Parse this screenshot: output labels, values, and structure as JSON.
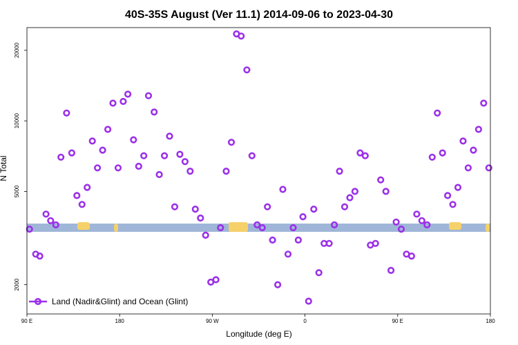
{
  "chart_data": {
    "type": "scatter",
    "title": "40S-35S August (Ver 11.1)   2014-09-06 to 2023-04-30",
    "xlabel": "Longitude (deg E)",
    "ylabel": "N Total",
    "x_range_deg": [
      90,
      450
    ],
    "y_scale": "log",
    "ylim": [
      1500,
      25000
    ],
    "x_ticks": [
      {
        "value": 90,
        "label": "90 E"
      },
      {
        "value": 180,
        "label": "180"
      },
      {
        "value": 270,
        "label": "90 W"
      },
      {
        "value": 360,
        "label": "0"
      },
      {
        "value": 450,
        "label": "90 E"
      },
      {
        "value": 540,
        "label": "180"
      }
    ],
    "y_ticks": [
      {
        "value": 2000,
        "label": "2000"
      },
      {
        "value": 5000,
        "label": "5000"
      },
      {
        "value": 10000,
        "label": "10000"
      },
      {
        "value": 20000,
        "label": "20000"
      }
    ],
    "grid": false,
    "legend": {
      "position": "bottom-left",
      "entries": [
        "Land (Nadir&Glint) and Ocean (Glint)"
      ]
    },
    "series": [
      {
        "name": "Land (Nadir&Glint) and Ocean (Glint)",
        "color": "#9b30e8",
        "marker": "ring",
        "points": [
          [
            92.5,
            3450
          ],
          [
            98.5,
            2700
          ],
          [
            102.5,
            2650
          ],
          [
            108.5,
            4000
          ],
          [
            113,
            3750
          ],
          [
            118,
            3600
          ],
          [
            123,
            7000
          ],
          [
            128.5,
            10800
          ],
          [
            133.5,
            7300
          ],
          [
            138.5,
            4800
          ],
          [
            143.5,
            4400
          ],
          [
            148.5,
            5200
          ],
          [
            153.5,
            8200
          ],
          [
            158.5,
            6300
          ],
          [
            163.5,
            7500
          ],
          [
            168.5,
            9200
          ],
          [
            173.5,
            11900
          ],
          [
            178.5,
            6300
          ],
          [
            183.5,
            12100
          ],
          [
            188,
            13000
          ],
          [
            193.5,
            8300
          ],
          [
            198.5,
            6400
          ],
          [
            203.5,
            7100
          ],
          [
            208,
            12800
          ],
          [
            213.5,
            10900
          ],
          [
            218.5,
            5900
          ],
          [
            223.5,
            7100
          ],
          [
            228.5,
            8600
          ],
          [
            233.5,
            4300
          ],
          [
            238.5,
            7200
          ],
          [
            243.5,
            6700
          ],
          [
            248.5,
            6100
          ],
          [
            253.5,
            4200
          ],
          [
            258.5,
            3850
          ],
          [
            263.5,
            3250
          ],
          [
            268.5,
            2050
          ],
          [
            273.5,
            2100
          ],
          [
            278,
            3500
          ],
          [
            283.5,
            6100
          ],
          [
            288.5,
            8100
          ],
          [
            293.5,
            23500
          ],
          [
            298,
            23000
          ],
          [
            303.5,
            16500
          ],
          [
            308.5,
            7100
          ],
          [
            313.5,
            3600
          ],
          [
            318.5,
            3500
          ],
          [
            323.5,
            4300
          ],
          [
            328.5,
            3100
          ],
          [
            333.5,
            2000
          ],
          [
            338.5,
            5100
          ],
          [
            343.5,
            2700
          ],
          [
            348.5,
            3500
          ],
          [
            353.5,
            3100
          ],
          [
            358,
            3900
          ],
          [
            363.5,
            1700
          ],
          [
            368.5,
            4200
          ],
          [
            373.5,
            2250
          ],
          [
            378.5,
            3000
          ],
          [
            383.5,
            3000
          ],
          [
            388.5,
            3600
          ],
          [
            393.5,
            6100
          ],
          [
            398.5,
            4300
          ],
          [
            403.5,
            4700
          ],
          [
            408.5,
            5000
          ],
          [
            413.5,
            7300
          ],
          [
            418.5,
            7100
          ],
          [
            423.5,
            2950
          ],
          [
            428.5,
            3000
          ],
          [
            433.5,
            5600
          ],
          [
            438.5,
            5000
          ],
          [
            443.5,
            2300
          ],
          [
            448.5,
            3700
          ],
          [
            453.5,
            3450
          ],
          [
            458.5,
            2700
          ],
          [
            463.5,
            2650
          ],
          [
            468.5,
            4000
          ],
          [
            473.5,
            3750
          ],
          [
            478.5,
            3600
          ],
          [
            483.5,
            7000
          ],
          [
            488.5,
            10800
          ],
          [
            493.5,
            7300
          ],
          [
            498.5,
            4800
          ],
          [
            503.5,
            4400
          ],
          [
            508.5,
            5200
          ],
          [
            513.5,
            8200
          ],
          [
            518.5,
            6300
          ],
          [
            523.5,
            7500
          ],
          [
            528.5,
            9200
          ],
          [
            533.5,
            11900
          ],
          [
            538.5,
            6300
          ]
        ]
      }
    ]
  },
  "colors": {
    "ocean_band": "#9fb6d8",
    "land_blobs": "#f6d16a",
    "marker": "#9b30e8"
  }
}
